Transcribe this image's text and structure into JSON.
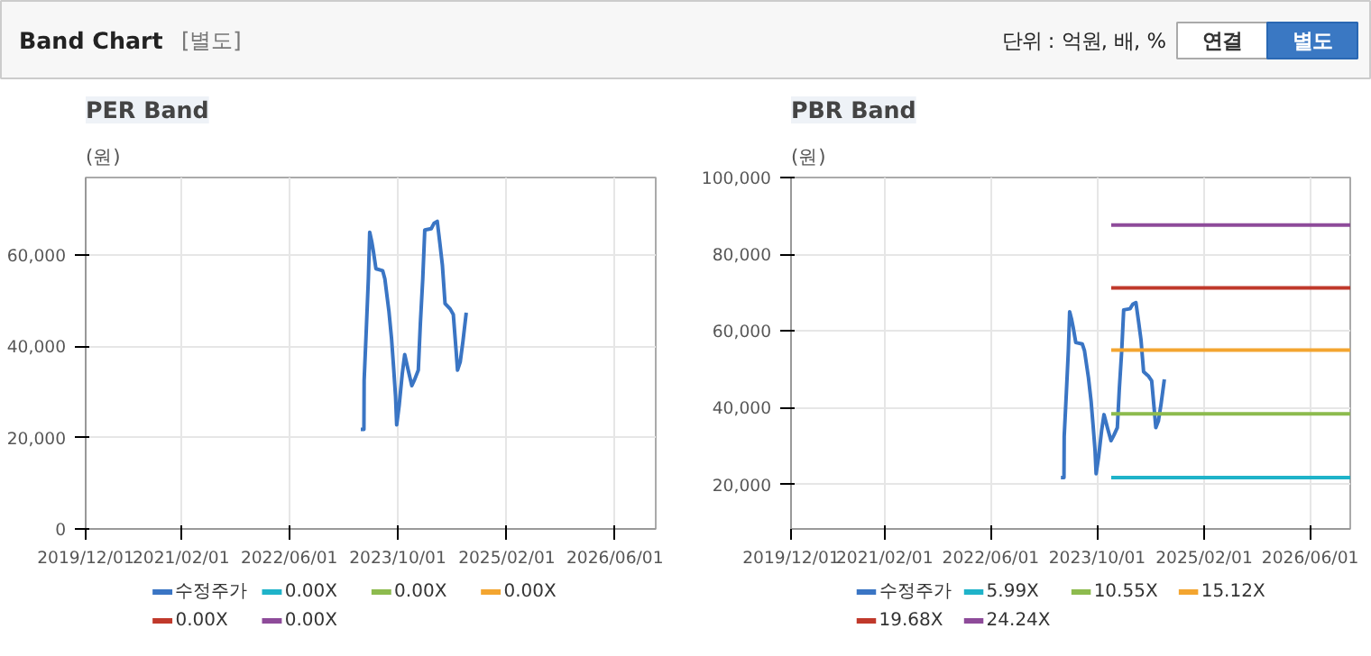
{
  "chart_data": [
    {
      "type": "other",
      "title": "Band Chart",
      "subtitle": "[별도]",
      "annotations": [
        "단위 : 억원, 배, %",
        "연결",
        "별도"
      ]
    },
    {
      "type": "line",
      "title": "PER Band",
      "ylabel": "(원)",
      "xlim": [
        "2019-12-01",
        "2026-12-01"
      ],
      "ylim": [
        0,
        77000
      ],
      "xticks": [
        {
          "value": "2019-12-01",
          "label": "2019/12/01"
        },
        {
          "value": "2021-02-01",
          "label": "2021/02/01"
        },
        {
          "value": "2022-06-01",
          "label": "2022/06/01"
        },
        {
          "value": "2023-10-01",
          "label": "2023/10/01"
        },
        {
          "value": "2025-02-01",
          "label": "2025/02/01"
        },
        {
          "value": "2026-06-01",
          "label": "2026/06/01"
        }
      ],
      "yticks": [
        0,
        {
          "value": 20000,
          "label": "20,000"
        },
        {
          "value": 40000,
          "label": "40,000"
        },
        {
          "value": 60000,
          "label": "60,000"
        }
      ],
      "grid": true,
      "legend": "bottom",
      "x": [
        "2023-04-18",
        "2023-05-02",
        "2023-05-03",
        "2023-05-13",
        "2023-05-22",
        "2023-05-28",
        "2023-06-06",
        "2023-06-13",
        "2023-06-25",
        "2023-07-25",
        "2023-08-04",
        "2023-08-22",
        "2023-09-03",
        "2023-09-12",
        "2023-09-21",
        "2023-09-26",
        "2023-10-07",
        "2023-10-21",
        "2023-11-01",
        "2023-11-19",
        "2023-12-03",
        "2023-12-16",
        "2024-01-01",
        "2024-01-10",
        "2024-01-21",
        "2024-01-30",
        "2024-02-28",
        "2024-03-12",
        "2024-03-26",
        "2024-04-07",
        "2024-04-18",
        "2024-04-30",
        "2024-05-23",
        "2024-06-06",
        "2024-06-18",
        "2024-06-25",
        "2024-07-07",
        "2024-07-19",
        "2024-08-03"
      ],
      "series": [
        {
          "name": "수정주가",
          "color": "#3a75c4",
          "values": [
            21800,
            21800,
            32500,
            44000,
            54800,
            65000,
            63000,
            61000,
            57000,
            56600,
            54800,
            47800,
            41700,
            35500,
            29000,
            22800,
            27000,
            34000,
            38200,
            34300,
            31400,
            32800,
            34800,
            44800,
            54800,
            65500,
            65800,
            67000,
            67400,
            62500,
            57800,
            49400,
            48200,
            47000,
            39400,
            34800,
            36600,
            41000,
            47400
          ]
        },
        {
          "name": "0.00X",
          "color": "#1fb3c9",
          "values": [
            null,
            null,
            null,
            null,
            null,
            null,
            null,
            null,
            null,
            null,
            null,
            null,
            null,
            null,
            null,
            null,
            null,
            null,
            null,
            null,
            null,
            null,
            null,
            null,
            null,
            null,
            null,
            null,
            null,
            null,
            null,
            null,
            null,
            null,
            null,
            null,
            null,
            null,
            null
          ]
        },
        {
          "name": "0.00X",
          "color": "#8dbb4e",
          "values": [
            null,
            null,
            null,
            null,
            null,
            null,
            null,
            null,
            null,
            null,
            null,
            null,
            null,
            null,
            null,
            null,
            null,
            null,
            null,
            null,
            null,
            null,
            null,
            null,
            null,
            null,
            null,
            null,
            null,
            null,
            null,
            null,
            null,
            null,
            null,
            null,
            null,
            null,
            null
          ]
        },
        {
          "name": "0.00X",
          "color": "#f3a530",
          "values": [
            null,
            null,
            null,
            null,
            null,
            null,
            null,
            null,
            null,
            null,
            null,
            null,
            null,
            null,
            null,
            null,
            null,
            null,
            null,
            null,
            null,
            null,
            null,
            null,
            null,
            null,
            null,
            null,
            null,
            null,
            null,
            null,
            null,
            null,
            null,
            null,
            null,
            null,
            null
          ]
        },
        {
          "name": "0.00X",
          "color": "#c0392b",
          "values": [
            null,
            null,
            null,
            null,
            null,
            null,
            null,
            null,
            null,
            null,
            null,
            null,
            null,
            null,
            null,
            null,
            null,
            null,
            null,
            null,
            null,
            null,
            null,
            null,
            null,
            null,
            null,
            null,
            null,
            null,
            null,
            null,
            null,
            null,
            null,
            null,
            null,
            null,
            null
          ]
        },
        {
          "name": "0.00X",
          "color": "#8e4b9a",
          "values": [
            null,
            null,
            null,
            null,
            null,
            null,
            null,
            null,
            null,
            null,
            null,
            null,
            null,
            null,
            null,
            null,
            null,
            null,
            null,
            null,
            null,
            null,
            null,
            null,
            null,
            null,
            null,
            null,
            null,
            null,
            null,
            null,
            null,
            null,
            null,
            null,
            null,
            null,
            null
          ]
        }
      ]
    },
    {
      "type": "line",
      "title": "PBR Band",
      "ylabel": "(원)",
      "xlim": [
        "2019-12-01",
        "2026-12-01"
      ],
      "ylim": [
        8400,
        100000
      ],
      "xticks": [
        {
          "value": "2019-12-01",
          "label": "2019/12/01"
        },
        {
          "value": "2021-02-01",
          "label": "2021/02/01"
        },
        {
          "value": "2022-06-01",
          "label": "2022/06/01"
        },
        {
          "value": "2023-10-01",
          "label": "2023/10/01"
        },
        {
          "value": "2025-02-01",
          "label": "2025/02/01"
        },
        {
          "value": "2026-06-01",
          "label": "2026/06/01"
        }
      ],
      "yticks": [
        {
          "value": 20000,
          "label": "20,000"
        },
        {
          "value": 40000,
          "label": "40,000"
        },
        {
          "value": 60000,
          "label": "60,000"
        },
        {
          "value": 80000,
          "label": "80,000"
        },
        {
          "value": 100000,
          "label": "100,000"
        }
      ],
      "grid": true,
      "legend": "bottom",
      "x": [
        "2023-04-18",
        "2023-05-02",
        "2023-05-03",
        "2023-05-13",
        "2023-05-22",
        "2023-05-28",
        "2023-06-06",
        "2023-06-13",
        "2023-06-25",
        "2023-07-25",
        "2023-08-04",
        "2023-08-22",
        "2023-09-03",
        "2023-09-12",
        "2023-09-21",
        "2023-09-26",
        "2023-10-07",
        "2023-10-21",
        "2023-11-01",
        "2023-11-19",
        "2023-12-03",
        "2023-12-16",
        "2024-01-01",
        "2024-01-10",
        "2024-01-21",
        "2024-01-30",
        "2024-02-28",
        "2024-03-12",
        "2024-03-26",
        "2024-04-07",
        "2024-04-18",
        "2024-04-30",
        "2024-05-23",
        "2024-06-06",
        "2024-06-18",
        "2024-06-25",
        "2024-07-07",
        "2024-07-19",
        "2024-08-03"
      ],
      "series": [
        {
          "name": "수정주가",
          "color": "#3a75c4",
          "values": [
            21800,
            21800,
            32500,
            44000,
            54800,
            65000,
            63000,
            61000,
            57000,
            56600,
            54800,
            47800,
            41700,
            35500,
            29000,
            22800,
            27000,
            34000,
            38200,
            34300,
            31400,
            32800,
            34800,
            44800,
            54800,
            65500,
            65800,
            67000,
            67400,
            62500,
            57800,
            49400,
            48200,
            47000,
            39400,
            34800,
            36600,
            41000,
            47400
          ]
        },
        {
          "name": "5.99X",
          "color": "#1fb3c9",
          "x": [
            "2023-12-04",
            "2026-12-01"
          ],
          "values": [
            21800,
            21800
          ]
        },
        {
          "name": "10.55X",
          "color": "#8dbb4e",
          "x": [
            "2023-12-04",
            "2026-12-01"
          ],
          "values": [
            38400,
            38400
          ]
        },
        {
          "name": "15.12X",
          "color": "#f3a530",
          "x": [
            "2023-12-04",
            "2026-12-01"
          ],
          "values": [
            55000,
            55000
          ]
        },
        {
          "name": "19.68X",
          "color": "#c0392b",
          "x": [
            "2023-12-04",
            "2026-12-01"
          ],
          "values": [
            71200,
            71200
          ]
        },
        {
          "name": "24.24X",
          "color": "#8e4b9a",
          "x": [
            "2023-12-04",
            "2026-12-01"
          ],
          "values": [
            87600,
            87600
          ]
        }
      ]
    }
  ]
}
